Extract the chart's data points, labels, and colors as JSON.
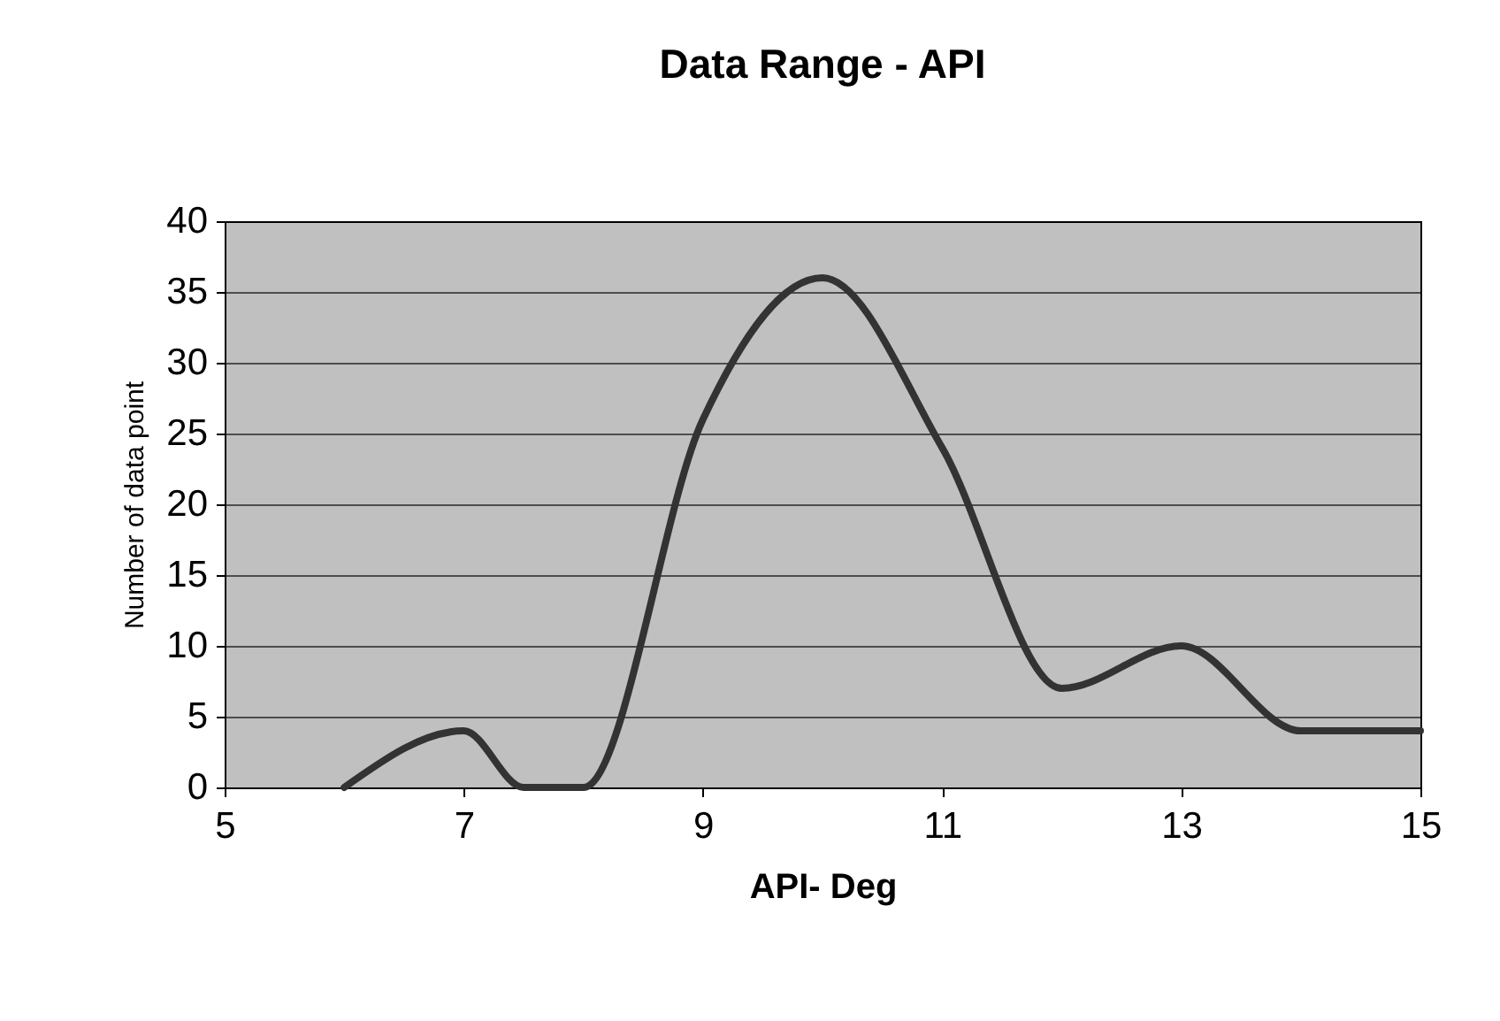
{
  "chart_data": {
    "type": "line",
    "title": "Data Range - API",
    "xlabel": "API- Deg",
    "ylabel": "Number of data point",
    "x": [
      6,
      7,
      7.5,
      8,
      9,
      10,
      11,
      12,
      13,
      14,
      15
    ],
    "series": [
      {
        "color": "#333333",
        "values": [
          0,
          4,
          0,
          0,
          26,
          36,
          24,
          7,
          10,
          4,
          4
        ]
      }
    ],
    "xlim": [
      5,
      15
    ],
    "xticks": [
      5,
      7,
      9,
      11,
      13,
      15
    ],
    "ylim": [
      0,
      40
    ],
    "yticks": [
      0,
      5,
      10,
      15,
      20,
      25,
      30,
      35,
      40
    ],
    "grid": "y",
    "marker": "none",
    "line_style": "solid"
  }
}
